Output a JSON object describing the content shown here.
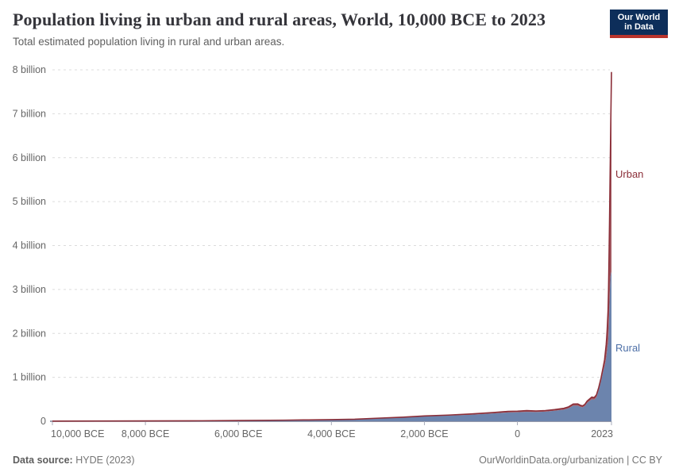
{
  "header": {
    "title": "Population living in urban and rural areas, World, 10,000 BCE to 2023",
    "subtitle": "Total estimated population living in rural and urban areas."
  },
  "logo": {
    "line1": "Our World",
    "line2": "in Data",
    "bg_color": "#0d2e5a",
    "strip_color": "#b9342c"
  },
  "chart_data": {
    "type": "area",
    "stacked": true,
    "title": "Population living in urban and rural areas, World, 10,000 BCE to 2023",
    "xlabel": "",
    "ylabel": "",
    "xlim": [
      -10000,
      2023
    ],
    "ylim": [
      0,
      8
    ],
    "grid": "horizontal dashed",
    "legend_position": "right-edge labels",
    "x": [
      -10000,
      -9000,
      -8000,
      -7000,
      -6000,
      -5000,
      -4500,
      -4000,
      -3500,
      -3000,
      -2500,
      -2000,
      -1500,
      -1000,
      -500,
      -200,
      1,
      200,
      400,
      600,
      800,
      1000,
      1100,
      1200,
      1300,
      1350,
      1400,
      1450,
      1500,
      1600,
      1650,
      1700,
      1750,
      1800,
      1850,
      1875,
      1900,
      1910,
      1920,
      1930,
      1940,
      1950,
      1960,
      1970,
      1980,
      1990,
      2000,
      2010,
      2015,
      2023
    ],
    "series": [
      {
        "name": "Rural",
        "unit": "billion",
        "fill_color": "#6c84ad",
        "label_color": "#4d6fa7",
        "values": [
          0.004,
          0.005,
          0.007,
          0.01,
          0.015,
          0.024,
          0.03,
          0.036,
          0.044,
          0.066,
          0.085,
          0.111,
          0.128,
          0.15,
          0.18,
          0.2,
          0.205,
          0.215,
          0.21,
          0.22,
          0.24,
          0.265,
          0.295,
          0.355,
          0.355,
          0.33,
          0.315,
          0.345,
          0.42,
          0.5,
          0.49,
          0.545,
          0.71,
          0.92,
          1.16,
          1.25,
          1.39,
          1.45,
          1.54,
          1.62,
          1.73,
          1.78,
          2.0,
          2.35,
          2.7,
          3.03,
          3.28,
          3.36,
          3.38,
          3.4
        ]
      },
      {
        "name": "Urban",
        "unit": "billion",
        "fill_color": "#9a4a52",
        "line_color": "#8b2e38",
        "label_color": "#8b2e38",
        "values": [
          0.0,
          0.0,
          0.0,
          0.0,
          0.001,
          0.001,
          0.001,
          0.002,
          0.003,
          0.004,
          0.006,
          0.009,
          0.012,
          0.015,
          0.02,
          0.025,
          0.025,
          0.027,
          0.025,
          0.024,
          0.026,
          0.03,
          0.033,
          0.036,
          0.038,
          0.036,
          0.035,
          0.038,
          0.04,
          0.05,
          0.05,
          0.055,
          0.06,
          0.07,
          0.1,
          0.15,
          0.26,
          0.3,
          0.36,
          0.45,
          0.57,
          0.75,
          1.0,
          1.35,
          1.75,
          2.27,
          2.85,
          3.6,
          3.95,
          4.55
        ]
      }
    ],
    "y_ticks": [
      {
        "value": 0,
        "label": "0"
      },
      {
        "value": 1,
        "label": "1 billion"
      },
      {
        "value": 2,
        "label": "2 billion"
      },
      {
        "value": 3,
        "label": "3 billion"
      },
      {
        "value": 4,
        "label": "4 billion"
      },
      {
        "value": 5,
        "label": "5 billion"
      },
      {
        "value": 6,
        "label": "6 billion"
      },
      {
        "value": 7,
        "label": "7 billion"
      },
      {
        "value": 8,
        "label": "8 billion"
      }
    ],
    "x_ticks": [
      {
        "value": -10000,
        "label": "10,000 BCE"
      },
      {
        "value": -8000,
        "label": "8,000 BCE"
      },
      {
        "value": -6000,
        "label": "6,000 BCE"
      },
      {
        "value": -4000,
        "label": "4,000 BCE"
      },
      {
        "value": -2000,
        "label": "2,000 BCE"
      },
      {
        "value": 0,
        "label": "0"
      },
      {
        "value": 2023,
        "label": "2023"
      }
    ],
    "colors": {
      "grid": "#dcdcdc",
      "axis_line": "#787d90",
      "tick_mark": "#a9adbb",
      "tick_label": "#666666"
    }
  },
  "footer": {
    "source_label": "Data source:",
    "source_value": " HYDE (2023)",
    "credit": "OurWorldinData.org/urbanization | CC BY"
  }
}
